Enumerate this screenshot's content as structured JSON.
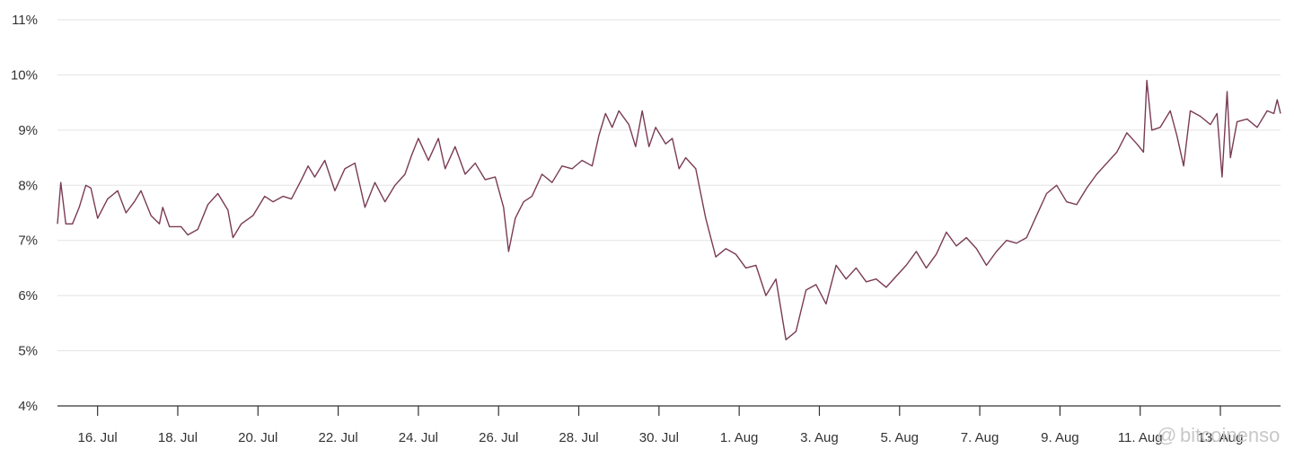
{
  "chart_data": {
    "type": "line",
    "title": "",
    "xlabel": "",
    "ylabel": "",
    "ylim": [
      4,
      11
    ],
    "y_tick_labels": [
      "4%",
      "5%",
      "6%",
      "7%",
      "8%",
      "9%",
      "10%",
      "11%"
    ],
    "y_tick_values": [
      4,
      5,
      6,
      7,
      8,
      9,
      10,
      11
    ],
    "x_tick_labels": [
      "16. Jul",
      "18. Jul",
      "20. Jul",
      "22. Jul",
      "24. Jul",
      "26. Jul",
      "28. Jul",
      "30. Jul",
      "1. Aug",
      "3. Aug",
      "5. Aug",
      "7. Aug",
      "9. Aug",
      "11. Aug",
      "13. Aug"
    ],
    "x_tick_dates": [
      "2024-07-16",
      "2024-07-18",
      "2024-07-20",
      "2024-07-22",
      "2024-07-24",
      "2024-07-26",
      "2024-07-28",
      "2024-07-30",
      "2024-08-01",
      "2024-08-03",
      "2024-08-05",
      "2024-08-07",
      "2024-08-09",
      "2024-08-11",
      "2024-08-13"
    ],
    "xlim": [
      "2024-07-15 00:00",
      "2024-08-14 12:00"
    ],
    "grid": true,
    "legend": "none",
    "series": [
      {
        "color": "#7a3b55",
        "points": [
          [
            "2024-07-15 00:00",
            7.3
          ],
          [
            "2024-07-15 02:00",
            8.05
          ],
          [
            "2024-07-15 05:00",
            7.3
          ],
          [
            "2024-07-15 09:00",
            7.3
          ],
          [
            "2024-07-15 13:00",
            7.6
          ],
          [
            "2024-07-15 17:00",
            8.0
          ],
          [
            "2024-07-15 20:00",
            7.95
          ],
          [
            "2024-07-16 00:00",
            7.4
          ],
          [
            "2024-07-16 06:00",
            7.75
          ],
          [
            "2024-07-16 12:00",
            7.9
          ],
          [
            "2024-07-16 17:00",
            7.5
          ],
          [
            "2024-07-16 22:00",
            7.7
          ],
          [
            "2024-07-17 02:00",
            7.9
          ],
          [
            "2024-07-17 08:00",
            7.45
          ],
          [
            "2024-07-17 13:00",
            7.3
          ],
          [
            "2024-07-17 15:00",
            7.6
          ],
          [
            "2024-07-17 19:00",
            7.25
          ],
          [
            "2024-07-18 02:00",
            7.25
          ],
          [
            "2024-07-18 06:00",
            7.1
          ],
          [
            "2024-07-18 12:00",
            7.2
          ],
          [
            "2024-07-18 18:00",
            7.65
          ],
          [
            "2024-07-19 00:00",
            7.85
          ],
          [
            "2024-07-19 06:00",
            7.55
          ],
          [
            "2024-07-19 09:00",
            7.05
          ],
          [
            "2024-07-19 14:00",
            7.3
          ],
          [
            "2024-07-19 21:00",
            7.45
          ],
          [
            "2024-07-20 04:00",
            7.8
          ],
          [
            "2024-07-20 09:00",
            7.7
          ],
          [
            "2024-07-20 15:00",
            7.8
          ],
          [
            "2024-07-20 20:00",
            7.75
          ],
          [
            "2024-07-21 02:00",
            8.1
          ],
          [
            "2024-07-21 06:00",
            8.35
          ],
          [
            "2024-07-21 10:00",
            8.15
          ],
          [
            "2024-07-21 16:00",
            8.45
          ],
          [
            "2024-07-21 22:00",
            7.9
          ],
          [
            "2024-07-22 04:00",
            8.3
          ],
          [
            "2024-07-22 10:00",
            8.4
          ],
          [
            "2024-07-22 16:00",
            7.6
          ],
          [
            "2024-07-22 22:00",
            8.05
          ],
          [
            "2024-07-23 04:00",
            7.7
          ],
          [
            "2024-07-23 10:00",
            8.0
          ],
          [
            "2024-07-23 16:00",
            8.2
          ],
          [
            "2024-07-23 20:00",
            8.55
          ],
          [
            "2024-07-24 00:00",
            8.85
          ],
          [
            "2024-07-24 06:00",
            8.45
          ],
          [
            "2024-07-24 12:00",
            8.85
          ],
          [
            "2024-07-24 16:00",
            8.3
          ],
          [
            "2024-07-24 22:00",
            8.7
          ],
          [
            "2024-07-25 04:00",
            8.2
          ],
          [
            "2024-07-25 10:00",
            8.4
          ],
          [
            "2024-07-25 16:00",
            8.1
          ],
          [
            "2024-07-25 22:00",
            8.15
          ],
          [
            "2024-07-26 03:00",
            7.6
          ],
          [
            "2024-07-26 06:00",
            6.8
          ],
          [
            "2024-07-26 10:00",
            7.4
          ],
          [
            "2024-07-26 15:00",
            7.7
          ],
          [
            "2024-07-26 20:00",
            7.8
          ],
          [
            "2024-07-27 02:00",
            8.2
          ],
          [
            "2024-07-27 08:00",
            8.05
          ],
          [
            "2024-07-27 14:00",
            8.35
          ],
          [
            "2024-07-27 20:00",
            8.3
          ],
          [
            "2024-07-28 02:00",
            8.45
          ],
          [
            "2024-07-28 08:00",
            8.35
          ],
          [
            "2024-07-28 12:00",
            8.9
          ],
          [
            "2024-07-28 16:00",
            9.3
          ],
          [
            "2024-07-28 20:00",
            9.05
          ],
          [
            "2024-07-29 00:00",
            9.35
          ],
          [
            "2024-07-29 06:00",
            9.1
          ],
          [
            "2024-07-29 10:00",
            8.7
          ],
          [
            "2024-07-29 14:00",
            9.35
          ],
          [
            "2024-07-29 18:00",
            8.7
          ],
          [
            "2024-07-29 22:00",
            9.05
          ],
          [
            "2024-07-30 04:00",
            8.75
          ],
          [
            "2024-07-30 08:00",
            8.85
          ],
          [
            "2024-07-30 12:00",
            8.3
          ],
          [
            "2024-07-30 16:00",
            8.5
          ],
          [
            "2024-07-30 22:00",
            8.3
          ],
          [
            "2024-07-31 04:00",
            7.4
          ],
          [
            "2024-07-31 10:00",
            6.7
          ],
          [
            "2024-07-31 16:00",
            6.85
          ],
          [
            "2024-07-31 22:00",
            6.75
          ],
          [
            "2024-08-01 04:00",
            6.5
          ],
          [
            "2024-08-01 10:00",
            6.55
          ],
          [
            "2024-08-01 16:00",
            6.0
          ],
          [
            "2024-08-01 22:00",
            6.3
          ],
          [
            "2024-08-02 04:00",
            5.2
          ],
          [
            "2024-08-02 10:00",
            5.35
          ],
          [
            "2024-08-02 16:00",
            6.1
          ],
          [
            "2024-08-02 22:00",
            6.2
          ],
          [
            "2024-08-03 04:00",
            5.85
          ],
          [
            "2024-08-03 10:00",
            6.55
          ],
          [
            "2024-08-03 16:00",
            6.3
          ],
          [
            "2024-08-03 22:00",
            6.5
          ],
          [
            "2024-08-04 04:00",
            6.25
          ],
          [
            "2024-08-04 10:00",
            6.3
          ],
          [
            "2024-08-04 16:00",
            6.15
          ],
          [
            "2024-08-04 22:00",
            6.35
          ],
          [
            "2024-08-05 04:00",
            6.55
          ],
          [
            "2024-08-05 10:00",
            6.8
          ],
          [
            "2024-08-05 16:00",
            6.5
          ],
          [
            "2024-08-05 22:00",
            6.75
          ],
          [
            "2024-08-06 04:00",
            7.15
          ],
          [
            "2024-08-06 10:00",
            6.9
          ],
          [
            "2024-08-06 16:00",
            7.05
          ],
          [
            "2024-08-06 22:00",
            6.85
          ],
          [
            "2024-08-07 04:00",
            6.55
          ],
          [
            "2024-08-07 10:00",
            6.8
          ],
          [
            "2024-08-07 16:00",
            7.0
          ],
          [
            "2024-08-07 22:00",
            6.95
          ],
          [
            "2024-08-08 04:00",
            7.05
          ],
          [
            "2024-08-08 10:00",
            7.45
          ],
          [
            "2024-08-08 16:00",
            7.85
          ],
          [
            "2024-08-08 22:00",
            8.0
          ],
          [
            "2024-08-09 04:00",
            7.7
          ],
          [
            "2024-08-09 10:00",
            7.65
          ],
          [
            "2024-08-09 16:00",
            7.95
          ],
          [
            "2024-08-09 22:00",
            8.2
          ],
          [
            "2024-08-10 04:00",
            8.4
          ],
          [
            "2024-08-10 10:00",
            8.6
          ],
          [
            "2024-08-10 16:00",
            8.95
          ],
          [
            "2024-08-10 22:00",
            8.75
          ],
          [
            "2024-08-11 02:00",
            8.6
          ],
          [
            "2024-08-11 04:00",
            9.9
          ],
          [
            "2024-08-11 07:00",
            9.0
          ],
          [
            "2024-08-11 12:00",
            9.05
          ],
          [
            "2024-08-11 18:00",
            9.35
          ],
          [
            "2024-08-11 22:00",
            8.9
          ],
          [
            "2024-08-12 02:00",
            8.35
          ],
          [
            "2024-08-12 06:00",
            9.35
          ],
          [
            "2024-08-12 12:00",
            9.25
          ],
          [
            "2024-08-12 18:00",
            9.1
          ],
          [
            "2024-08-12 22:00",
            9.3
          ],
          [
            "2024-08-13 01:00",
            8.15
          ],
          [
            "2024-08-13 04:00",
            9.7
          ],
          [
            "2024-08-13 06:00",
            8.5
          ],
          [
            "2024-08-13 10:00",
            9.15
          ],
          [
            "2024-08-13 16:00",
            9.2
          ],
          [
            "2024-08-13 22:00",
            9.05
          ],
          [
            "2024-08-14 04:00",
            9.35
          ],
          [
            "2024-08-14 08:00",
            9.3
          ],
          [
            "2024-08-14 10:00",
            9.55
          ],
          [
            "2024-08-14 12:00",
            9.3
          ]
        ]
      }
    ]
  },
  "watermark": {
    "at_sign": "@",
    "text": "bitcoinenso"
  }
}
